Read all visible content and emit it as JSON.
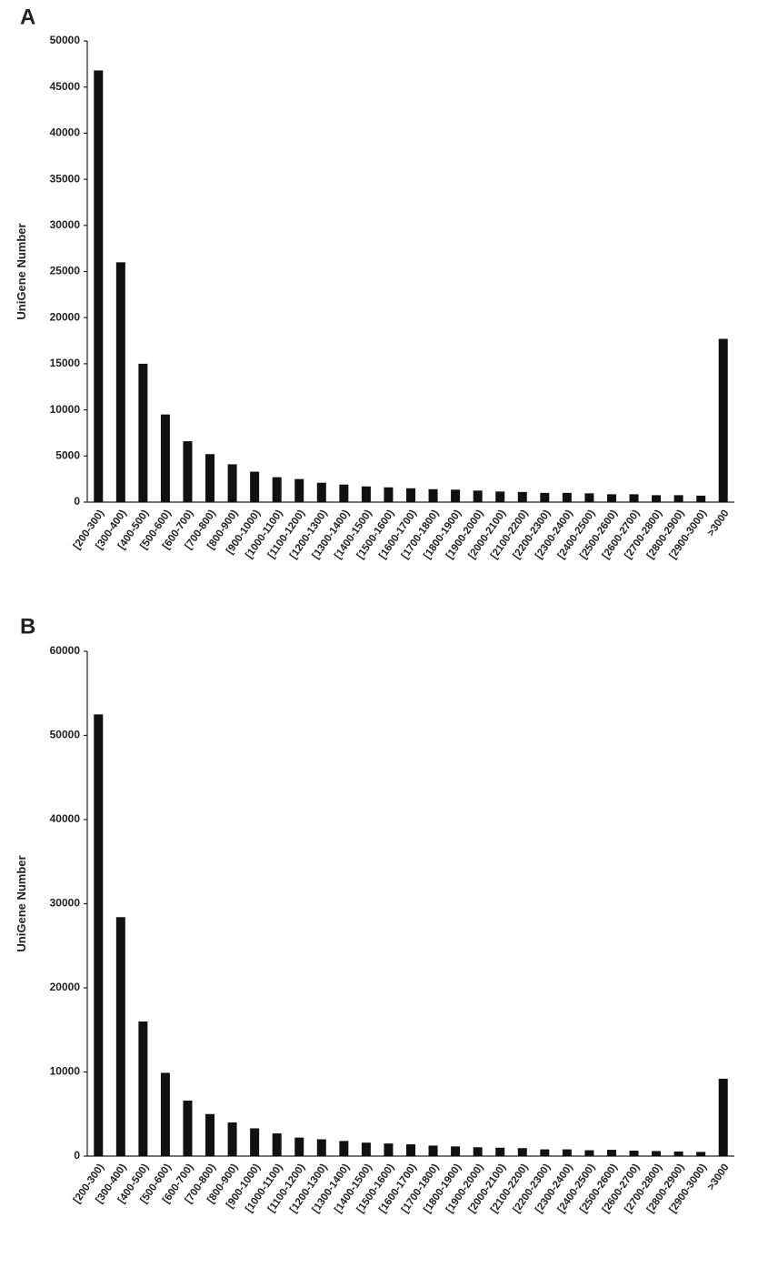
{
  "chart_data": [
    {
      "type": "bar",
      "panel_label": "A",
      "y_label": "UniGene Number",
      "color": "#111111",
      "categories": [
        "[200-300)",
        "[300-400)",
        "[400-500)",
        "[500-600)",
        "[600-700)",
        "[700-800)",
        "[800-900)",
        "[900-1000)",
        "[1000-1100)",
        "[1100-1200)",
        "[1200-1300)",
        "[1300-1400)",
        "[1400-1500)",
        "[1500-1600)",
        "[1600-1700)",
        "[1700-1800)",
        "[1800-1900)",
        "[1900-2000)",
        "[2000-2100)",
        "[2100-2200)",
        "[2200-2300)",
        "[2300-2400)",
        "[2400-2500)",
        "[2500-2600)",
        "[2600-2700)",
        "[2700-2800)",
        "[2800-2900)",
        "[2900-3000)",
        ">3000"
      ],
      "values": [
        46800,
        26000,
        15000,
        9500,
        6600,
        5200,
        4100,
        3300,
        2700,
        2500,
        2100,
        1900,
        1700,
        1600,
        1500,
        1400,
        1350,
        1250,
        1150,
        1100,
        1000,
        1000,
        950,
        850,
        850,
        750,
        750,
        700,
        17700
      ],
      "ylim": [
        0,
        50000
      ],
      "yticks": [
        0,
        5000,
        10000,
        15000,
        20000,
        25000,
        30000,
        35000,
        40000,
        45000,
        50000
      ],
      "grid": false
    },
    {
      "type": "bar",
      "panel_label": "B",
      "y_label": "UniGene Number",
      "color": "#111111",
      "categories": [
        "[200-300)",
        "[300-400)",
        "[400-500)",
        "[500-600)",
        "[600-700)",
        "[700-800)",
        "[800-900)",
        "[900-1000)",
        "[1000-1100)",
        "[1100-1200)",
        "[1200-1300)",
        "[1300-1400)",
        "[1400-1500)",
        "[1500-1600)",
        "[1600-1700)",
        "[1700-1800)",
        "[1800-1900)",
        "[1900-2000)",
        "[2000-2100)",
        "[2100-2200)",
        "[2200-2300)",
        "[2300-2400)",
        "[2400-2500)",
        "[2500-2600)",
        "[2600-2700)",
        "[2700-2800)",
        "[2800-2900)",
        "[2900-3000)",
        ">3000"
      ],
      "values": [
        52500,
        28400,
        16000,
        9900,
        6600,
        5000,
        4000,
        3300,
        2700,
        2200,
        2000,
        1800,
        1600,
        1500,
        1400,
        1250,
        1150,
        1050,
        1000,
        950,
        800,
        800,
        700,
        750,
        650,
        600,
        550,
        500,
        9200
      ],
      "ylim": [
        0,
        60000
      ],
      "yticks": [
        0,
        10000,
        20000,
        30000,
        40000,
        50000,
        60000
      ],
      "grid": false
    }
  ]
}
